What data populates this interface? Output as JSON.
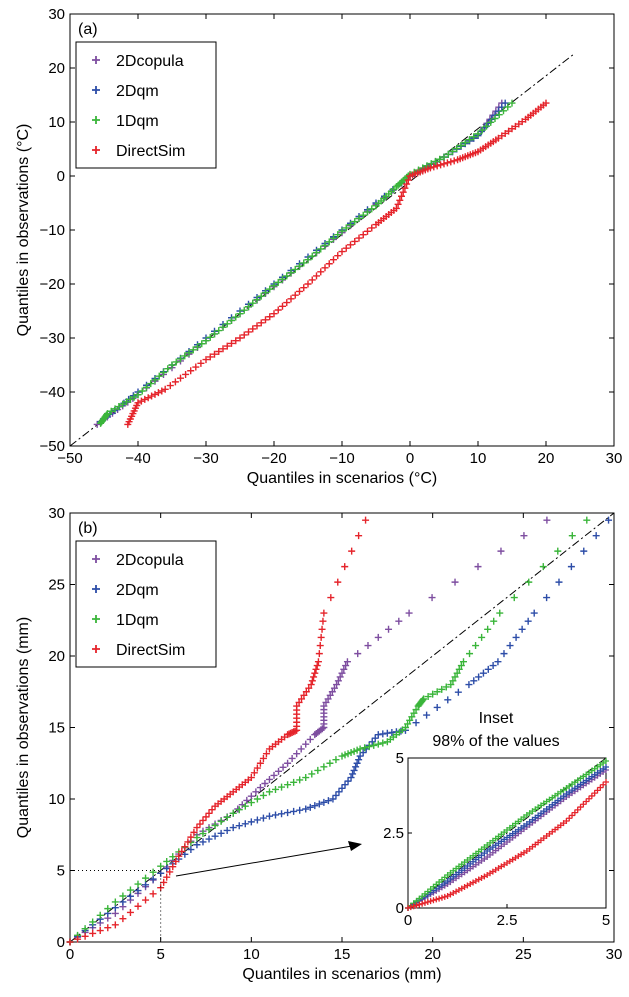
{
  "chart_data": [
    {
      "type": "scatter",
      "panel_label": "(a)",
      "xlabel": "Quantiles in scenarios (°C)",
      "ylabel": "Quantiles in observations (°C)",
      "xlim": [
        -50,
        30
      ],
      "ylim": [
        -50,
        30
      ],
      "xticks": [
        -50,
        -40,
        -30,
        -20,
        -10,
        0,
        10,
        20,
        30
      ],
      "yticks": [
        -50,
        -40,
        -30,
        -20,
        -10,
        0,
        10,
        20,
        30
      ],
      "xtick_labels": [
        "−50",
        "−40",
        "−30",
        "−20",
        "−10",
        "0",
        "10",
        "20",
        "30"
      ],
      "ytick_labels": [
        "−50",
        "−40",
        "−30",
        "−20",
        "−10",
        "0",
        "10",
        "20",
        "30"
      ],
      "legend_position": "top-left",
      "reference_line": "1:1 dash-dot",
      "series": [
        {
          "name": "2Dcopula",
          "color": "#7e4ea0",
          "points": [
            [
              -46,
              -46
            ],
            [
              -40,
              -40.5
            ],
            [
              -30,
              -30.5
            ],
            [
              -20,
              -20.5
            ],
            [
              -10,
              -10.5
            ],
            [
              0,
              0
            ],
            [
              5,
              3.5
            ],
            [
              10,
              7.5
            ],
            [
              13.5,
              13.5
            ]
          ]
        },
        {
          "name": "2Dqm",
          "color": "#2d4da8",
          "points": [
            [
              -45.5,
              -45.5
            ],
            [
              -40,
              -40
            ],
            [
              -30,
              -30
            ],
            [
              -20,
              -20
            ],
            [
              -10,
              -10
            ],
            [
              0,
              0
            ],
            [
              5,
              3.5
            ],
            [
              10,
              7.5
            ],
            [
              14,
              13.5
            ]
          ]
        },
        {
          "name": "1Dqm",
          "color": "#3ab53a",
          "points": [
            [
              -45.5,
              -45.8
            ],
            [
              -44.5,
              -44
            ],
            [
              -40,
              -40.5
            ],
            [
              -35,
              -35
            ],
            [
              -30,
              -30.5
            ],
            [
              -25,
              -25.5
            ],
            [
              -20,
              -20.3
            ],
            [
              -15,
              -15.5
            ],
            [
              -10,
              -10.2
            ],
            [
              -5,
              -5.5
            ],
            [
              -2,
              -2
            ],
            [
              0,
              0.3
            ],
            [
              5,
              3.5
            ],
            [
              10,
              7.8
            ],
            [
              15,
              13.5
            ]
          ]
        },
        {
          "name": "DirectSim",
          "color": "#e5242b",
          "points": [
            [
              -41.5,
              -46
            ],
            [
              -40,
              -42
            ],
            [
              -36,
              -39.5
            ],
            [
              -30,
              -34
            ],
            [
              -25,
              -30
            ],
            [
              -20,
              -25.5
            ],
            [
              -15,
              -20
            ],
            [
              -10,
              -14
            ],
            [
              -5,
              -9
            ],
            [
              -2,
              -6
            ],
            [
              0,
              0
            ],
            [
              3,
              1.5
            ],
            [
              7,
              3
            ],
            [
              10,
              4.5
            ],
            [
              13,
              7
            ],
            [
              17,
              10.5
            ],
            [
              20,
              13.5
            ]
          ]
        }
      ]
    },
    {
      "type": "scatter",
      "panel_label": "(b)",
      "xlabel": "Quantiles in scenarios (mm)",
      "ylabel": "Quantiles in observations (mm)",
      "xlim": [
        0,
        30
      ],
      "ylim": [
        0,
        30
      ],
      "xticks": [
        0,
        5,
        10,
        15,
        20,
        25,
        30
      ],
      "yticks": [
        0,
        5,
        10,
        15,
        20,
        25,
        30
      ],
      "xtick_labels": [
        "0",
        "5",
        "10",
        "15",
        "20",
        "25",
        "30"
      ],
      "ytick_labels": [
        "0",
        "5",
        "10",
        "15",
        "20",
        "25",
        "30"
      ],
      "legend_position": "top-left",
      "reference_line": "1:1 dash-dot",
      "marker_at": [
        5,
        5
      ],
      "series": [
        {
          "name": "2Dcopula",
          "color": "#7e4ea0",
          "points": [
            [
              0,
              0
            ],
            [
              2.5,
              2
            ],
            [
              5,
              4.8
            ],
            [
              7,
              7.5
            ],
            [
              9,
              9
            ],
            [
              10.5,
              10.8
            ],
            [
              12,
              12.5
            ],
            [
              13.5,
              14.5
            ],
            [
              14,
              15
            ],
            [
              14,
              16.5
            ],
            [
              14.7,
              18
            ],
            [
              15.3,
              19.6
            ],
            [
              18.7,
              23
            ],
            [
              26.3,
              29.5
            ]
          ]
        },
        {
          "name": "2Dqm",
          "color": "#2d4da8",
          "points": [
            [
              0,
              0
            ],
            [
              2.5,
              2.4
            ],
            [
              5,
              4.8
            ],
            [
              7,
              6.8
            ],
            [
              9,
              8
            ],
            [
              11,
              8.8
            ],
            [
              13,
              9.3
            ],
            [
              14.5,
              10
            ],
            [
              15.5,
              11.5
            ],
            [
              16,
              13
            ],
            [
              17,
              14.5
            ],
            [
              18.5,
              14.8
            ],
            [
              22,
              18
            ],
            [
              23.6,
              19.6
            ],
            [
              25.6,
              23
            ],
            [
              29.7,
              29.5
            ]
          ]
        },
        {
          "name": "1Dqm",
          "color": "#3ab53a",
          "points": [
            [
              0,
              0
            ],
            [
              2.5,
              2.8
            ],
            [
              5,
              5.3
            ],
            [
              7,
              7.3
            ],
            [
              9,
              9
            ],
            [
              11,
              10.5
            ],
            [
              13,
              11.5
            ],
            [
              15,
              13
            ],
            [
              16,
              13.5
            ],
            [
              17.5,
              14
            ],
            [
              18.5,
              15
            ],
            [
              19.2,
              16.5
            ],
            [
              19.5,
              17
            ],
            [
              21,
              18
            ],
            [
              21.7,
              19.6
            ],
            [
              23.7,
              23
            ],
            [
              28.5,
              29.5
            ]
          ]
        },
        {
          "name": "DirectSim",
          "color": "#e5242b",
          "points": [
            [
              0,
              0
            ],
            [
              2.5,
              1.2
            ],
            [
              5,
              3.8
            ],
            [
              6,
              6
            ],
            [
              7,
              8
            ],
            [
              8,
              9.5
            ],
            [
              9,
              10.5
            ],
            [
              10,
              11.5
            ],
            [
              11,
              13.5
            ],
            [
              12,
              14.5
            ],
            [
              12.5,
              14.8
            ],
            [
              12.5,
              16.5
            ],
            [
              13.3,
              18
            ],
            [
              13.7,
              19.6
            ],
            [
              14,
              23
            ],
            [
              16.3,
              29.5
            ]
          ]
        }
      ],
      "inset": {
        "title_line1": "Inset",
        "title_line2": "98% of the values",
        "xlim": [
          0,
          5
        ],
        "ylim": [
          0,
          5
        ],
        "xtick_labels": [
          "0",
          "2.5",
          "5"
        ],
        "ytick_labels": [
          "0",
          "2.5",
          "5"
        ],
        "series": [
          {
            "name": "2Dcopula",
            "color": "#7e4ea0",
            "points": [
              [
                0,
                0
              ],
              [
                1,
                0.8
              ],
              [
                2,
                1.7
              ],
              [
                3,
                2.7
              ],
              [
                4,
                3.7
              ],
              [
                5,
                4.6
              ]
            ]
          },
          {
            "name": "2Dqm",
            "color": "#2d4da8",
            "points": [
              [
                0,
                0
              ],
              [
                1,
                0.9
              ],
              [
                2,
                1.9
              ],
              [
                3,
                2.8
              ],
              [
                4,
                3.8
              ],
              [
                5,
                4.7
              ]
            ]
          },
          {
            "name": "1Dqm",
            "color": "#3ab53a",
            "points": [
              [
                0,
                0
              ],
              [
                1,
                1.1
              ],
              [
                2,
                2.1
              ],
              [
                3,
                3.1
              ],
              [
                4,
                4
              ],
              [
                5,
                4.9
              ]
            ]
          },
          {
            "name": "DirectSim",
            "color": "#e5242b",
            "points": [
              [
                0,
                0
              ],
              [
                1,
                0.4
              ],
              [
                2,
                1.1
              ],
              [
                3,
                1.9
              ],
              [
                4,
                2.9
              ],
              [
                5,
                4.2
              ]
            ]
          }
        ]
      }
    }
  ]
}
